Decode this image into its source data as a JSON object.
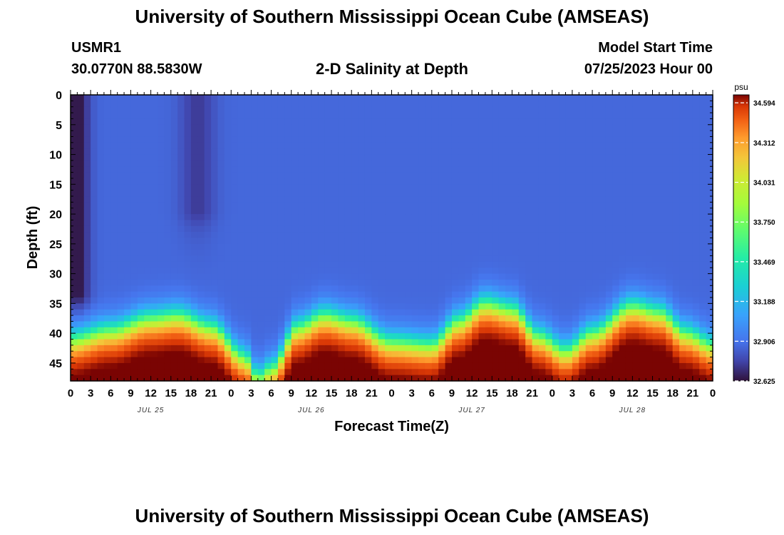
{
  "page": {
    "title": "University of Southern Mississippi Ocean Cube (AMSEAS)",
    "footer_title": "University of Southern Mississippi Ocean Cube (AMSEAS)",
    "station": "USMR1",
    "coordinates": "30.0770N  88.5830W",
    "plot_title": "2-D Salinity at Depth",
    "model_start_label": "Model Start Time",
    "model_start_value": "07/25/2023 Hour 00"
  },
  "chart_data": {
    "type": "heatmap",
    "title": "2-D Salinity at Depth",
    "xlabel": "Forecast Time(Z)",
    "ylabel": "Depth (ft)",
    "x_unit": "hours from model start",
    "xlim": [
      0,
      96
    ],
    "ylim": [
      0,
      48
    ],
    "y_inverted": true,
    "x_tick_values": [
      0,
      3,
      6,
      9,
      12,
      15,
      18,
      21,
      24,
      27,
      30,
      33,
      36,
      39,
      42,
      45,
      48,
      51,
      54,
      57,
      60,
      63,
      66,
      69,
      72,
      75,
      78,
      81,
      84,
      87,
      90,
      93,
      96
    ],
    "x_tick_labels": [
      "0",
      "3",
      "6",
      "9",
      "12",
      "15",
      "18",
      "21",
      "0",
      "3",
      "6",
      "9",
      "12",
      "15",
      "18",
      "21",
      "0",
      "3",
      "6",
      "9",
      "12",
      "15",
      "18",
      "21",
      "0",
      "3",
      "6",
      "9",
      "12",
      "15",
      "18",
      "21",
      "0"
    ],
    "date_labels": [
      {
        "x": 12,
        "label": "JUL 25"
      },
      {
        "x": 36,
        "label": "JUL 26"
      },
      {
        "x": 60,
        "label": "JUL 27"
      },
      {
        "x": 84,
        "label": "JUL 28"
      }
    ],
    "y_ticks": [
      0,
      5,
      10,
      15,
      20,
      25,
      30,
      35,
      40,
      45
    ],
    "colorbar": {
      "unit": "psu",
      "min": 32.625,
      "max": 34.65,
      "tick_values": [
        34.594,
        34.312,
        34.031,
        33.75,
        33.469,
        33.188,
        32.906,
        32.625
      ],
      "tick_labels": [
        "34.594",
        "34.312",
        "34.031",
        "33.750",
        "33.469",
        "33.188",
        "32.906",
        "32.625"
      ]
    },
    "halocline_depth_ft": [
      {
        "x": 0,
        "depth": 38
      },
      {
        "x": 6,
        "depth": 36.5
      },
      {
        "x": 12,
        "depth": 34.5
      },
      {
        "x": 16,
        "depth": 34
      },
      {
        "x": 21,
        "depth": 36
      },
      {
        "x": 26,
        "depth": 41
      },
      {
        "x": 28,
        "depth": 44.5
      },
      {
        "x": 30,
        "depth": 43
      },
      {
        "x": 34,
        "depth": 36
      },
      {
        "x": 38,
        "depth": 34
      },
      {
        "x": 42,
        "depth": 35
      },
      {
        "x": 48,
        "depth": 38.5
      },
      {
        "x": 54,
        "depth": 39
      },
      {
        "x": 58,
        "depth": 35
      },
      {
        "x": 62,
        "depth": 32
      },
      {
        "x": 66,
        "depth": 33
      },
      {
        "x": 70,
        "depth": 37.5
      },
      {
        "x": 74,
        "depth": 40
      },
      {
        "x": 78,
        "depth": 37
      },
      {
        "x": 84,
        "depth": 32.5
      },
      {
        "x": 88,
        "depth": 33.5
      },
      {
        "x": 92,
        "depth": 37
      },
      {
        "x": 96,
        "depth": 39
      }
    ],
    "fresh_patches": [
      {
        "x": 1,
        "ymax": 34,
        "salinity": 32.63
      },
      {
        "x": 19,
        "ymax": 20,
        "salinity": 32.74
      }
    ],
    "surface_background_psu": 32.87
  }
}
